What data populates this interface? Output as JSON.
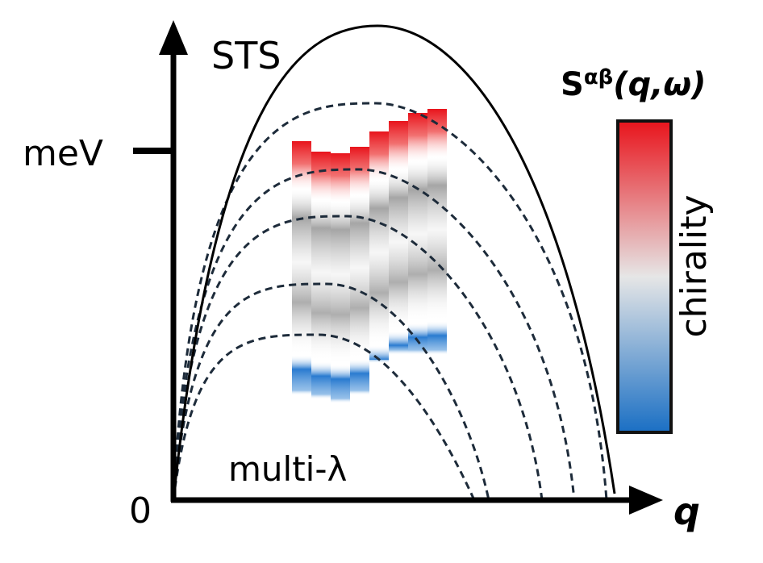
{
  "axes": {
    "y_label": "STS",
    "y_unit": "meV",
    "origin": "0",
    "x_label": "q"
  },
  "annotation": "multi-λ",
  "colorbar": {
    "title_base": "S",
    "title_superscript": "αβ",
    "title_args": "(q,ω)",
    "label": "chirality"
  }
}
